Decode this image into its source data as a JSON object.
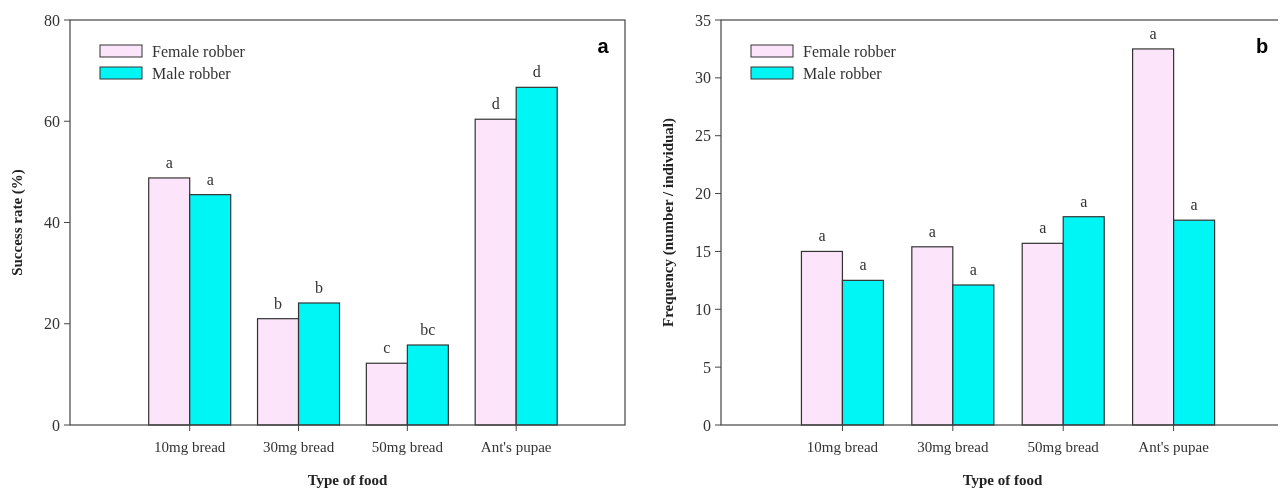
{
  "chart_data": [
    {
      "type": "bar",
      "title": "a",
      "xlabel": "Type of food",
      "ylabel": "Success rate (%)",
      "categories": [
        "10mg bread",
        "30mg bread",
        "50mg bread",
        "Ant's pupae"
      ],
      "series": [
        {
          "name": "Female robber",
          "color": "#fce4fa",
          "values": [
            48.8,
            21.0,
            12.2,
            60.4
          ]
        },
        {
          "name": "Male robber",
          "color": "#00f5f5",
          "values": [
            45.5,
            24.1,
            15.8,
            66.7
          ]
        }
      ],
      "ylim": [
        0,
        80
      ],
      "yticks": [
        0,
        20,
        40,
        60,
        80
      ],
      "grid": false,
      "legend": "top left",
      "annotations": [
        {
          "text": "a",
          "x": "10mg bread",
          "y": 48.8
        },
        {
          "text": "a",
          "x": "10mg bread",
          "y": 45.5
        },
        {
          "text": "b",
          "x": "30mg bread",
          "y": 21.0
        },
        {
          "text": "b",
          "x": "30mg bread",
          "y": 24.1
        },
        {
          "text": "c",
          "x": "50mg bread",
          "y": 12.2
        },
        {
          "text": "bc",
          "x": "50mg bread",
          "y": 15.8
        },
        {
          "text": "d",
          "x": "Ant's pupae",
          "y": 60.4
        },
        {
          "text": "d",
          "x": "Ant's pupae",
          "y": 66.7
        }
      ]
    },
    {
      "type": "bar",
      "title": "b",
      "xlabel": "Type of food",
      "ylabel": "Frequency (number / individual)",
      "categories": [
        "10mg bread",
        "30mg bread",
        "50mg bread",
        "Ant's pupae"
      ],
      "series": [
        {
          "name": "Female robber",
          "color": "#fce4fa",
          "values": [
            15.0,
            15.4,
            15.7,
            32.5
          ]
        },
        {
          "name": "Male robber",
          "color": "#00f5f5",
          "values": [
            12.5,
            12.1,
            18.0,
            17.7
          ]
        }
      ],
      "ylim": [
        0,
        35
      ],
      "yticks": [
        0,
        5,
        10,
        15,
        20,
        25,
        30,
        35
      ],
      "grid": false,
      "legend": "top left",
      "annotations": [
        {
          "text": "a",
          "x": "10mg bread",
          "y": 15.0
        },
        {
          "text": "a",
          "x": "10mg bread",
          "y": 12.5
        },
        {
          "text": "a",
          "x": "30mg bread",
          "y": 15.4
        },
        {
          "text": "a",
          "x": "30mg bread",
          "y": 12.1
        },
        {
          "text": "a",
          "x": "50mg bread",
          "y": 15.7
        },
        {
          "text": "a",
          "x": "50mg bread",
          "y": 18.0
        },
        {
          "text": "a",
          "x": "Ant's pupae",
          "y": 32.5
        },
        {
          "text": "a",
          "x": "Ant's pupae",
          "y": 17.7
        }
      ]
    }
  ]
}
